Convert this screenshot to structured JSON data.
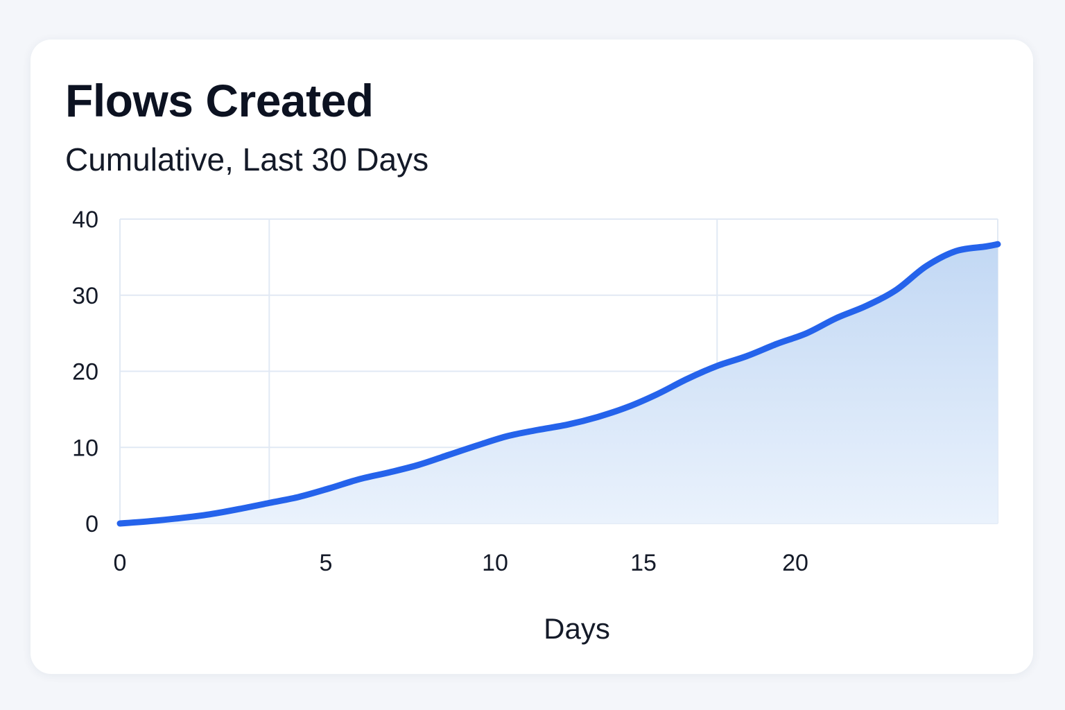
{
  "card": {
    "title": "Flows Created",
    "subtitle": "Cumulative, Last 30 Days"
  },
  "chart_data": {
    "type": "area",
    "title": "Flows Created",
    "subtitle": "Cumulative, Last 30 Days",
    "xlabel": "Days",
    "ylabel": "",
    "x_ticks": [
      0,
      5,
      10,
      15,
      20
    ],
    "y_ticks": [
      0,
      10,
      20,
      30,
      40
    ],
    "xlim": [
      0,
      29.4
    ],
    "ylim": [
      0,
      40
    ],
    "grid": true,
    "legend": "none",
    "series": [
      {
        "x": [
          0,
          1,
          2,
          3,
          4,
          5,
          6,
          7,
          8,
          9,
          10,
          11,
          12,
          13,
          14,
          15,
          16,
          17,
          18,
          19,
          20,
          21,
          22,
          23,
          24,
          25,
          26,
          27,
          28,
          29,
          29.4
        ],
        "y": [
          0,
          0.3,
          0.7,
          1.2,
          1.9,
          2.7,
          3.5,
          4.6,
          5.8,
          6.7,
          7.7,
          9.0,
          10.3,
          11.5,
          12.3,
          13.0,
          14.0,
          15.3,
          17.0,
          19.0,
          20.7,
          22.0,
          23.6,
          25.0,
          27.0,
          28.6,
          30.7,
          33.8,
          35.8,
          36.4,
          36.7
        ]
      }
    ],
    "colors": {
      "line": "#2563eb",
      "fill": "#c6dbf5",
      "grid": "#e1e9f4"
    }
  }
}
